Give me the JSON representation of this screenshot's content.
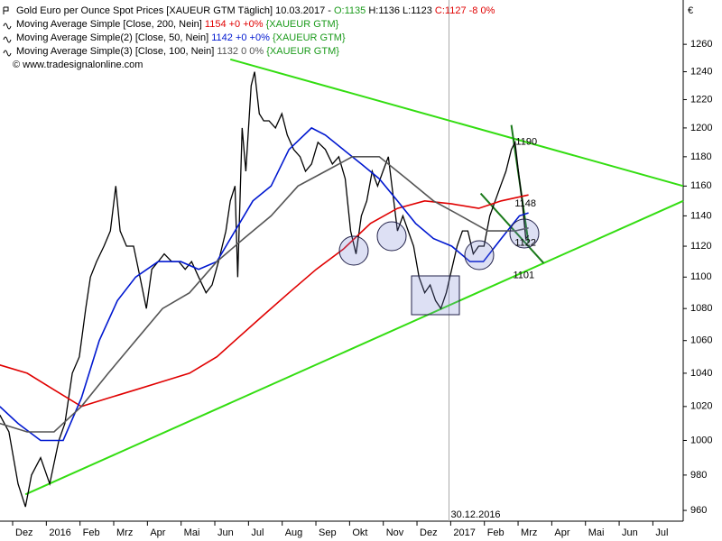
{
  "chart_data": {
    "type": "line",
    "log_scale": true,
    "currency": "€",
    "header": {
      "title": "Gold Euro per Ounce Spot Prices [XAUEUR GTM  Täglich] 10.03.2017 - ",
      "open": "O:1135",
      "high_low": "H:1136 L:1123",
      "close": "C:1127 -8 0%",
      "copyright": "© www.tradesignalonline.com"
    },
    "xlim": [
      -0.375,
      19.9
    ],
    "xticks": [
      {
        "value": 0,
        "label": "Dez"
      },
      {
        "value": 1,
        "label": "2016"
      },
      {
        "value": 2,
        "label": "Feb"
      },
      {
        "value": 3,
        "label": "Mrz"
      },
      {
        "value": 4,
        "label": "Apr"
      },
      {
        "value": 5,
        "label": "Mai"
      },
      {
        "value": 6,
        "label": "Jun"
      },
      {
        "value": 7,
        "label": "Jul"
      },
      {
        "value": 8,
        "label": "Aug"
      },
      {
        "value": 9,
        "label": "Sep"
      },
      {
        "value": 10,
        "label": "Okt"
      },
      {
        "value": 11,
        "label": "Nov"
      },
      {
        "value": 12,
        "label": "Dez"
      },
      {
        "value": 13,
        "label": "2017"
      },
      {
        "value": 14,
        "label": "Feb"
      },
      {
        "value": 15,
        "label": "Mrz"
      },
      {
        "value": 16,
        "label": "Apr"
      },
      {
        "value": 17,
        "label": "Mai"
      },
      {
        "value": 18,
        "label": "Jun"
      },
      {
        "value": 19,
        "label": "Jul"
      }
    ],
    "ylim": [
      954,
      1293
    ],
    "yticks": [
      960,
      980,
      1000,
      1020,
      1040,
      1060,
      1080,
      1100,
      1120,
      1140,
      1160,
      1180,
      1200,
      1220,
      1240,
      1260
    ],
    "date_line": {
      "x": 12.95,
      "label": "30.12.2016"
    },
    "price": {
      "color": "#000000",
      "x": [
        -0.38,
        -0.11,
        0.16,
        0.38,
        0.56,
        0.83,
        1.1,
        1.37,
        1.55,
        1.77,
        1.98,
        2.17,
        2.31,
        2.49,
        2.71,
        2.9,
        3.06,
        3.19,
        3.38,
        3.59,
        3.78,
        3.97,
        4.13,
        4.32,
        4.5,
        4.72,
        4.93,
        5.12,
        5.31,
        5.52,
        5.74,
        5.92,
        6.11,
        6.33,
        6.46,
        6.6,
        6.68,
        6.81,
        6.92,
        7.08,
        7.18,
        7.32,
        7.45,
        7.61,
        7.8,
        7.99,
        8.15,
        8.34,
        8.53,
        8.69,
        8.87,
        9.06,
        9.28,
        9.49,
        9.68,
        9.87,
        10.03,
        10.19,
        10.35,
        10.51,
        10.67,
        10.83,
        10.99,
        11.15,
        11.31,
        11.42,
        11.58,
        11.74,
        11.9,
        12.06,
        12.23,
        12.39,
        12.55,
        12.71,
        12.87,
        13.03,
        13.19,
        13.35,
        13.51,
        13.67,
        13.83,
        13.99,
        14.16,
        14.32,
        14.48,
        14.64,
        14.8,
        14.91,
        15.01,
        15.12,
        15.23,
        15.31
      ],
      "values": [
        1015,
        1005,
        975,
        962,
        980,
        990,
        975,
        1000,
        1010,
        1040,
        1050,
        1080,
        1100,
        1110,
        1120,
        1130,
        1160,
        1130,
        1120,
        1120,
        1100,
        1080,
        1105,
        1110,
        1115,
        1110,
        1110,
        1105,
        1110,
        1100,
        1090,
        1095,
        1110,
        1130,
        1150,
        1160,
        1100,
        1200,
        1170,
        1230,
        1240,
        1210,
        1205,
        1205,
        1200,
        1210,
        1195,
        1185,
        1180,
        1170,
        1175,
        1190,
        1185,
        1175,
        1180,
        1165,
        1130,
        1115,
        1140,
        1150,
        1170,
        1160,
        1170,
        1180,
        1150,
        1130,
        1140,
        1130,
        1120,
        1100,
        1090,
        1095,
        1085,
        1080,
        1090,
        1105,
        1120,
        1130,
        1130,
        1115,
        1120,
        1120,
        1140,
        1150,
        1160,
        1170,
        1185,
        1190,
        1170,
        1150,
        1125,
        1127
      ]
    },
    "series": [
      {
        "name": "Moving Average Simple [Close, 200, Nein]",
        "value_text": "1154 +0 +0%",
        "source": "{XAUEUR GTM}",
        "color": "#e00000",
        "x": [
          -0.38,
          0.43,
          1.23,
          2.04,
          2.84,
          3.65,
          4.45,
          5.25,
          6.06,
          6.6,
          7.4,
          8.2,
          9.01,
          9.81,
          10.62,
          11.42,
          12.23,
          13.03,
          13.83,
          14.5,
          15.31
        ],
        "values": [
          1045,
          1040,
          1030,
          1020,
          1025,
          1030,
          1035,
          1040,
          1050,
          1060,
          1075,
          1090,
          1105,
          1118,
          1135,
          1145,
          1150,
          1148,
          1145,
          1150,
          1154
        ]
      },
      {
        "name": "Moving Average Simple(2) [Close, 50, Nein]",
        "value_text": "1142 +0 +0%",
        "source": "{XAUEUR GTM}",
        "color": "#0018d0",
        "x": [
          -0.38,
          0.16,
          0.83,
          1.5,
          2.04,
          2.57,
          3.11,
          3.65,
          4.32,
          4.99,
          5.52,
          6.06,
          6.6,
          7.13,
          7.67,
          8.2,
          8.87,
          9.28,
          9.81,
          10.35,
          10.88,
          11.42,
          11.96,
          12.49,
          13.03,
          13.57,
          13.97,
          14.5,
          15.04,
          15.31
        ],
        "values": [
          1020,
          1010,
          1000,
          1000,
          1025,
          1060,
          1085,
          1100,
          1110,
          1110,
          1105,
          1110,
          1130,
          1150,
          1160,
          1185,
          1200,
          1195,
          1185,
          1175,
          1165,
          1150,
          1135,
          1125,
          1120,
          1110,
          1110,
          1125,
          1140,
          1142
        ]
      },
      {
        "name": "Moving Average Simple(3) [Close, 100, Nein]",
        "value_text": "1132 0 0%",
        "source": "{XAUEUR GTM}",
        "color": "#555555",
        "x": [
          -0.38,
          0.43,
          1.23,
          2.04,
          2.84,
          3.65,
          4.45,
          5.25,
          6.06,
          6.86,
          7.67,
          8.47,
          9.28,
          10.08,
          10.88,
          11.69,
          12.49,
          13.3,
          14.1,
          14.91,
          15.31
        ],
        "values": [
          1010,
          1005,
          1005,
          1020,
          1040,
          1060,
          1080,
          1090,
          1110,
          1125,
          1140,
          1160,
          1170,
          1180,
          1180,
          1165,
          1150,
          1140,
          1130,
          1130,
          1132
        ]
      }
    ],
    "trend_lines": [
      {
        "color": "#33dd11",
        "x": [
          6.46,
          19.9
        ],
        "values": [
          1249,
          1160
        ]
      },
      {
        "color": "#33dd11",
        "x": [
          0.38,
          19.9
        ],
        "values": [
          969,
          1150
        ]
      },
      {
        "color": "#1a7a1a",
        "x": [
          14.8,
          15.31
        ],
        "values": [
          1202,
          1122
        ]
      },
      {
        "color": "#1a7a1a",
        "x": [
          13.89,
          15.76
        ],
        "values": [
          1155,
          1109
        ]
      }
    ],
    "annotations": [
      {
        "text": "1190",
        "x": 14.93,
        "y": 1190
      },
      {
        "text": "1148",
        "x": 14.9,
        "y": 1148
      },
      {
        "text": "1122",
        "x": 14.9,
        "y": 1122
      },
      {
        "text": "1101",
        "x": 14.85,
        "y": 1101
      }
    ]
  }
}
